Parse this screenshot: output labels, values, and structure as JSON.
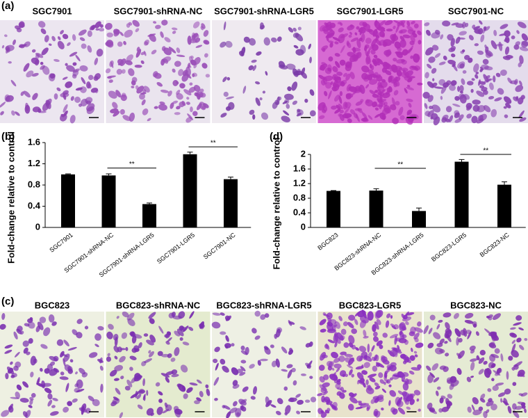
{
  "panel_a": {
    "label": "(a)",
    "images": [
      "SGC7901",
      "SGC7901-shRNA-NC",
      "SGC7901-shRNA-LGR5",
      "SGC7901-LGR5",
      "SGC7901-NC"
    ]
  },
  "panel_c": {
    "label": "(c)",
    "images": [
      "BGC823",
      "BGC823-shRNA-NC",
      "BGC823-shRNA-LGR5",
      "BGC823-LGR5",
      "BGC823-NC"
    ]
  },
  "chart_data": [
    {
      "type": "bar",
      "panel_label": "(b)",
      "y_label": "Fold-change relative to control",
      "color": "#000000",
      "categories": [
        "SGC7901",
        "SGC7901-shRNA-NC",
        "SGC7901-shRNA-LGR5",
        "SGC7901-LGR5",
        "SGC7901-NC"
      ],
      "values": [
        1.0,
        0.98,
        0.44,
        1.38,
        0.91
      ],
      "errors": [
        0.01,
        0.03,
        0.02,
        0.04,
        0.04
      ],
      "ylim": [
        0,
        1.6
      ],
      "yticks": [
        0,
        0.4,
        0.8,
        1.2,
        1.6
      ],
      "annotations": [
        {
          "text": "**",
          "from": 1,
          "to": 2,
          "y": 1.12
        },
        {
          "text": "**",
          "from": 3,
          "to": 4,
          "y": 1.52
        }
      ]
    },
    {
      "type": "bar",
      "panel_label": "(d)",
      "y_label": "Fold-change relative to control",
      "color": "#000000",
      "categories": [
        "BGC823",
        "BGC823-shRNA-NC",
        "BGC823-shRNA-LGR5",
        "BGC823-LGR5",
        "BGC823-NC"
      ],
      "values": [
        1.0,
        1.01,
        0.45,
        1.8,
        1.17
      ],
      "errors": [
        0.01,
        0.05,
        0.08,
        0.06,
        0.08
      ],
      "ylim": [
        0,
        2
      ],
      "yticks": [
        0,
        0.4,
        0.8,
        1.2,
        1.6,
        2
      ],
      "annotations": [
        {
          "text": "**",
          "from": 1,
          "to": 2,
          "y": 1.62
        },
        {
          "text": "**",
          "from": 3,
          "to": 4,
          "y": 2.0
        }
      ]
    }
  ]
}
